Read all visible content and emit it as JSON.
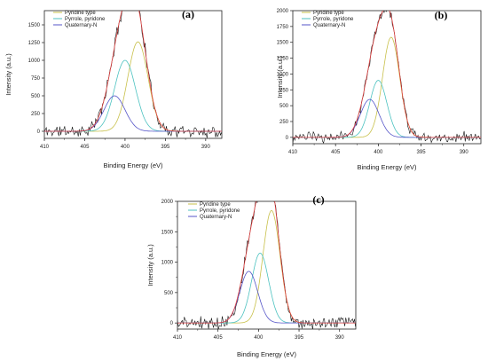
{
  "chart_data": [
    {
      "type": "line",
      "panel_label": "(a)",
      "xlabel": "Binding Energy (eV)",
      "ylabel": "Intensity (a.u.)",
      "xlim": [
        410,
        388
      ],
      "ylim": [
        -100,
        1700
      ],
      "x_ticks": [
        410,
        405,
        400,
        395,
        390
      ],
      "y_ticks": [
        0,
        250,
        500,
        750,
        1000,
        1250,
        1500
      ],
      "legend_position": "top-left",
      "series": [
        {
          "name": "Pyridine type",
          "color": "#c8c04a",
          "center": 398.4,
          "height": 1260,
          "sigma": 1.25
        },
        {
          "name": "Pyrrole, pyridone",
          "color": "#4cc2c0",
          "center": 400.0,
          "height": 1000,
          "sigma": 1.3
        },
        {
          "name": "Quaternary-N",
          "color": "#5555c8",
          "center": 401.3,
          "height": 500,
          "sigma": 1.3
        }
      ],
      "envelope_color": "#e04040",
      "raw_color": "#111111",
      "raw_noise": 70,
      "raw_seed": 11
    },
    {
      "type": "line",
      "panel_label": "(b)",
      "xlabel": "Binding Energy (eV)",
      "ylabel": "Intensity (a.u.)",
      "xlim": [
        410,
        388
      ],
      "ylim": [
        -100,
        2000
      ],
      "x_ticks": [
        410,
        405,
        400,
        395,
        390
      ],
      "y_ticks": [
        0,
        250,
        500,
        750,
        1000,
        1250,
        1500,
        1750,
        2000
      ],
      "legend_position": "top-left",
      "series": [
        {
          "name": "Pyridine type",
          "color": "#c8c04a",
          "center": 398.5,
          "height": 1580,
          "sigma": 1.0
        },
        {
          "name": "Pyrrole, pyridone",
          "color": "#4cc2c0",
          "center": 400.0,
          "height": 900,
          "sigma": 1.0
        },
        {
          "name": "Quaternary-N",
          "color": "#5555c8",
          "center": 401.0,
          "height": 600,
          "sigma": 1.1
        }
      ],
      "envelope_color": "#e04040",
      "raw_color": "#111111",
      "raw_noise": 70,
      "raw_seed": 23
    },
    {
      "type": "line",
      "panel_label": "(c)",
      "xlabel": "Binding Energy (eV)",
      "ylabel": "Intensity (a.u.)",
      "xlim": [
        410,
        388
      ],
      "ylim": [
        -100,
        2000
      ],
      "x_ticks": [
        410,
        405,
        400,
        395,
        390
      ],
      "y_ticks": [
        0,
        500,
        1000,
        1500,
        2000
      ],
      "y_minor_ticks": [
        250,
        750,
        1250,
        1750
      ],
      "legend_position": "top-left",
      "series": [
        {
          "name": "Pyridine type",
          "color": "#c8c04a",
          "center": 398.4,
          "height": 1850,
          "sigma": 1.05
        },
        {
          "name": "Pyrrole, pyridone",
          "color": "#4cc2c0",
          "center": 399.8,
          "height": 1150,
          "sigma": 1.05
        },
        {
          "name": "Quaternary-N",
          "color": "#5555c8",
          "center": 401.2,
          "height": 850,
          "sigma": 1.1
        }
      ],
      "envelope_color": "#e04040",
      "raw_color": "#111111",
      "raw_noise": 80,
      "raw_seed": 37
    }
  ]
}
